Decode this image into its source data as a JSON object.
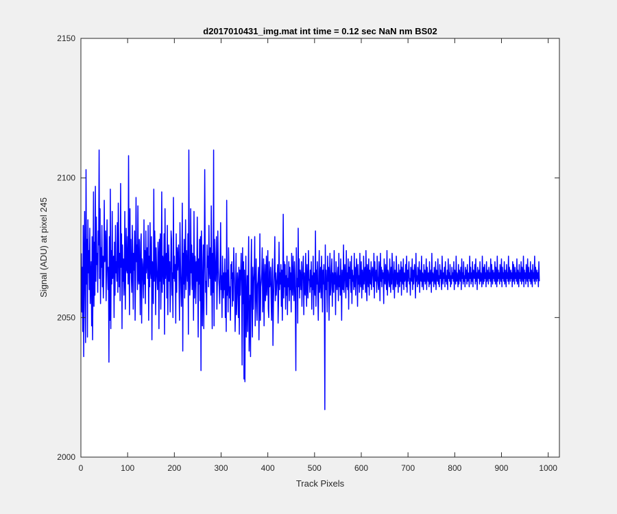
{
  "window": {
    "background": "#ffffff"
  },
  "chart_data": {
    "type": "line",
    "title": "d2017010431_img.mat int time = 0.12 sec  NaN nm BS02",
    "xlabel": "Track Pixels",
    "ylabel": "Signal (ADU) at pixel 245",
    "xlim": [
      0,
      1024
    ],
    "ylim": [
      2000,
      2150
    ],
    "xticks": [
      0,
      100,
      200,
      300,
      400,
      500,
      600,
      700,
      800,
      900,
      1000
    ],
    "yticks": [
      2000,
      2050,
      2100,
      2150
    ],
    "grid": false,
    "series": [
      {
        "color": "#0000ff",
        "x_start": 1,
        "x_step": 1,
        "y": [
          2073,
          2052,
          2068,
          2045,
          2083,
          2036,
          2070,
          2088,
          2058,
          2041,
          2103,
          2062,
          2078,
          2043,
          2085,
          2066,
          2074,
          2060,
          2082,
          2055,
          2064,
          2070,
          2047,
          2079,
          2042,
          2065,
          2095,
          2054,
          2077,
          2058,
          2097,
          2063,
          2086,
          2069,
          2073,
          2059,
          2081,
          2076,
          2110,
          2064,
          2089,
          2055,
          2075,
          2068,
          2083,
          2061,
          2072,
          2057,
          2065,
          2092,
          2070,
          2073,
          2081,
          2056,
          2071,
          2085,
          2067,
          2060,
          2068,
          2034,
          2079,
          2049,
          2096,
          2046,
          2074,
          2062,
          2088,
          2064,
          2069,
          2072,
          2050,
          2077,
          2058,
          2083,
          2066,
          2070,
          2063,
          2084,
          2059,
          2091,
          2075,
          2061,
          2073,
          2056,
          2098,
          2068,
          2080,
          2046,
          2076,
          2063,
          2071,
          2058,
          2064,
          2088,
          2053,
          2069,
          2082,
          2067,
          2066,
          2079,
          2062,
          2108,
          2071,
          2051,
          2089,
          2066,
          2078,
          2064,
          2059,
          2083,
          2071,
          2053,
          2073,
          2067,
          2081,
          2049,
          2064,
          2093,
          2070,
          2076,
          2060,
          2090,
          2064,
          2062,
          2078,
          2068,
          2051,
          2077,
          2080,
          2048,
          2071,
          2069,
          2063,
          2057,
          2085,
          2062,
          2074,
          2055,
          2081,
          2066,
          2070,
          2075,
          2064,
          2083,
          2049,
          2072,
          2061,
          2084,
          2067,
          2064,
          2079,
          2042,
          2070,
          2068,
          2055,
          2096,
          2063,
          2081,
          2072,
          2051,
          2075,
          2067,
          2064,
          2060,
          2077,
          2071,
          2046,
          2078,
          2063,
          2080,
          2053,
          2066,
          2095,
          2059,
          2072,
          2070,
          2062,
          2080,
          2044,
          2089,
          2064,
          2069,
          2073,
          2057,
          2083,
          2051,
          2066,
          2076,
          2063,
          2070,
          2052,
          2061,
          2081,
          2078,
          2058,
          2066,
          2050,
          2093,
          2064,
          2072,
          2063,
          2069,
          2048,
          2080,
          2059,
          2075,
          2067,
          2071,
          2076,
          2062,
          2049,
          2084,
          2070,
          2061,
          2054,
          2066,
          2091,
          2038,
          2073,
          2062,
          2078,
          2057,
          2067,
          2085,
          2060,
          2074,
          2068,
          2063,
          2080,
          2044,
          2110,
          2071,
          2058,
          2062,
          2089,
          2066,
          2076,
          2060,
          2073,
          2069,
          2049,
          2088,
          2057,
          2072,
          2069,
          2055,
          2070,
          2063,
          2086,
          2067,
          2043,
          2071,
          2062,
          2078,
          2056,
          2079,
          2031,
          2081,
          2070,
          2047,
          2061,
          2076,
          2046,
          2069,
          2103,
          2072,
          2059,
          2063,
          2051,
          2076,
          2068,
          2072,
          2061,
          2083,
          2067,
          2064,
          2075,
          2058,
          2090,
          2068,
          2046,
          2073,
          2059,
          2110,
          2047,
          2078,
          2066,
          2063,
          2071,
          2079,
          2053,
          2062,
          2081,
          2068,
          2064,
          2061,
          2055,
          2069,
          2084,
          2060,
          2065,
          2050,
          2072,
          2064,
          2057,
          2066,
          2060,
          2071,
          2050,
          2066,
          2045,
          2092,
          2058,
          2067,
          2052,
          2075,
          2063,
          2057,
          2061,
          2049,
          2069,
          2064,
          2070,
          2054,
          2066,
          2056,
          2075,
          2067,
          2062,
          2045,
          2055,
          2073,
          2051,
          2058,
          2066,
          2062,
          2050,
          2068,
          2044,
          2067,
          2058,
          2066,
          2073,
          2063,
          2033,
          2075,
          2055,
          2070,
          2028,
          2067,
          2027,
          2060,
          2072,
          2043,
          2055,
          2065,
          2045,
          2064,
          2079,
          2038,
          2048,
          2058,
          2036,
          2067,
          2078,
          2054,
          2043,
          2068,
          2053,
          2063,
          2066,
          2079,
          2047,
          2056,
          2071,
          2058,
          2049,
          2062,
          2063,
          2068,
          2042,
          2057,
          2080,
          2049,
          2061,
          2063,
          2066,
          2075,
          2052,
          2058,
          2071,
          2047,
          2063,
          2069,
          2056,
          2061,
          2072,
          2058,
          2065,
          2074,
          2053,
          2050,
          2070,
          2061,
          2063,
          2068,
          2057,
          2049,
          2066,
          2071,
          2040,
          2055,
          2063,
          2068,
          2079,
          2056,
          2066,
          2058,
          2062,
          2064,
          2069,
          2048,
          2056,
          2077,
          2060,
          2066,
          2062,
          2069,
          2054,
          2067,
          2049,
          2063,
          2087,
          2057,
          2070,
          2061,
          2069,
          2053,
          2065,
          2058,
          2072,
          2051,
          2064,
          2061,
          2070,
          2056,
          2068,
          2060,
          2066,
          2052,
          2073,
          2062,
          2058,
          2072,
          2063,
          2056,
          2070,
          2065,
          2053,
          2031,
          2075,
          2061,
          2064,
          2048,
          2082,
          2061,
          2071,
          2057,
          2067,
          2065,
          2060,
          2070,
          2054,
          2063,
          2068,
          2072,
          2051,
          2066,
          2060,
          2058,
          2073,
          2063,
          2054,
          2069,
          2062,
          2057,
          2074,
          2064,
          2063,
          2059,
          2067,
          2061,
          2070,
          2053,
          2065,
          2060,
          2072,
          2051,
          2066,
          2063,
          2058,
          2081,
          2054,
          2067,
          2062,
          2070,
          2058,
          2049,
          2065,
          2074,
          2059,
          2063,
          2068,
          2057,
          2072,
          2064,
          2052,
          2067,
          2062,
          2069,
          2058,
          2017,
          2076,
          2060,
          2067,
          2061,
          2052,
          2072,
          2063,
          2068,
          2049,
          2064,
          2073,
          2058,
          2061,
          2067,
          2071,
          2054,
          2066,
          2063,
          2059,
          2074,
          2062,
          2066,
          2051,
          2070,
          2065,
          2060,
          2064,
          2068,
          2056,
          2073,
          2061,
          2065,
          2058,
          2071,
          2063,
          2049,
          2067,
          2062,
          2060,
          2076,
          2059,
          2065,
          2069,
          2063,
          2057,
          2074,
          2061,
          2066,
          2060,
          2071,
          2053,
          2068,
          2064,
          2070,
          2062,
          2059,
          2072,
          2055,
          2067,
          2063,
          2065,
          2060,
          2073,
          2061,
          2068,
          2058,
          2066,
          2071,
          2064,
          2054,
          2069,
          2062,
          2065,
          2059,
          2073,
          2063,
          2061,
          2070,
          2057,
          2067,
          2064,
          2060,
          2072,
          2062,
          2066,
          2068,
          2059,
          2074,
          2063,
          2056,
          2069,
          2065,
          2061,
          2071,
          2058,
          2067,
          2063,
          2062,
          2070,
          2060,
          2065,
          2068,
          2066,
          2061,
          2073,
          2057,
          2070,
          2064,
          2063,
          2067,
          2059,
          2072,
          2065,
          2062,
          2060,
          2070,
          2066,
          2056,
          2073,
          2063,
          2068,
          2061,
          2067,
          2064,
          2066,
          2055,
          2071,
          2063,
          2062,
          2069,
          2065,
          2060,
          2074,
          2058,
          2067,
          2066,
          2063,
          2061,
          2071,
          2064,
          2059,
          2068,
          2062,
          2073,
          2066,
          2060,
          2064,
          2070,
          2057,
          2067,
          2063,
          2061,
          2072,
          2065,
          2062,
          2066,
          2059,
          2069,
          2064,
          2061,
          2067,
          2063,
          2070,
          2058,
          2068,
          2065,
          2062,
          2071,
          2060,
          2066,
          2063,
          2064,
          2069,
          2061,
          2072,
          2059,
          2067,
          2063,
          2066,
          2070,
          2062,
          2064,
          2058,
          2068,
          2065,
          2063,
          2071,
          2060,
          2067,
          2062,
          2066,
          2069,
          2064,
          2057,
          2073,
          2063,
          2065,
          2061,
          2068,
          2066,
          2062,
          2070,
          2059,
          2067,
          2064,
          2063,
          2072,
          2061,
          2066,
          2065,
          2060,
          2069,
          2063,
          2067,
          2062,
          2064,
          2071,
          2060,
          2068,
          2065,
          2063,
          2066,
          2061,
          2070,
          2062,
          2064,
          2067,
          2059,
          2073,
          2063,
          2066,
          2065,
          2061,
          2068,
          2064,
          2062,
          2070,
          2060,
          2067,
          2066,
          2063,
          2071,
          2062,
          2065,
          2061,
          2069,
          2064,
          2067,
          2063,
          2060,
          2072,
          2065,
          2062,
          2066,
          2064,
          2068,
          2061,
          2070,
          2063,
          2065,
          2062,
          2067,
          2060,
          2071,
          2064,
          2066,
          2063,
          2069,
          2061,
          2065,
          2062,
          2068,
          2064,
          2066,
          2063,
          2070,
          2060,
          2067,
          2065,
          2062,
          2072,
          2063,
          2066,
          2064,
          2061,
          2069,
          2062,
          2067,
          2065,
          2063,
          2068,
          2060,
          2071,
          2064,
          2066,
          2062,
          2070,
          2063,
          2065,
          2061,
          2068,
          2064,
          2067,
          2062,
          2069,
          2063,
          2066,
          2065,
          2061,
          2072,
          2064,
          2068,
          2062,
          2066,
          2063,
          2070,
          2061,
          2067,
          2065,
          2064,
          2069,
          2062,
          2071,
          2063,
          2066,
          2060,
          2068,
          2065,
          2064,
          2067,
          2062,
          2070,
          2063,
          2066,
          2064,
          2061,
          2072,
          2065,
          2062,
          2068,
          2063,
          2069,
          2064,
          2066,
          2061,
          2070,
          2063,
          2067,
          2065,
          2062,
          2068,
          2064,
          2066,
          2063,
          2071,
          2061,
          2069,
          2065,
          2062,
          2067,
          2064,
          2066,
          2063,
          2070,
          2062,
          2068,
          2065,
          2061,
          2072,
          2063,
          2067,
          2064,
          2066,
          2062,
          2069,
          2065,
          2063,
          2071,
          2061,
          2068,
          2064,
          2066,
          2063,
          2070,
          2062,
          2067,
          2065,
          2061,
          2069,
          2064,
          2066,
          2063,
          2072,
          2062,
          2068,
          2065,
          2063,
          2067,
          2064,
          2066,
          2061,
          2070,
          2063,
          2069,
          2065,
          2062,
          2068,
          2064,
          2066,
          2063,
          2071,
          2062,
          2067,
          2065,
          2061,
          2069,
          2064,
          2066,
          2063,
          2070,
          2062,
          2068,
          2065,
          2063,
          2072,
          2061,
          2067,
          2064,
          2066,
          2062,
          2069,
          2065,
          2063,
          2071,
          2061,
          2068,
          2064,
          2066,
          2063,
          2070,
          2062,
          2067,
          2065,
          2061,
          2069,
          2064,
          2066,
          2063,
          2072,
          2062,
          2068,
          2065,
          2063,
          2067,
          2064,
          2066,
          2061,
          2070,
          2063
        ]
      }
    ]
  }
}
